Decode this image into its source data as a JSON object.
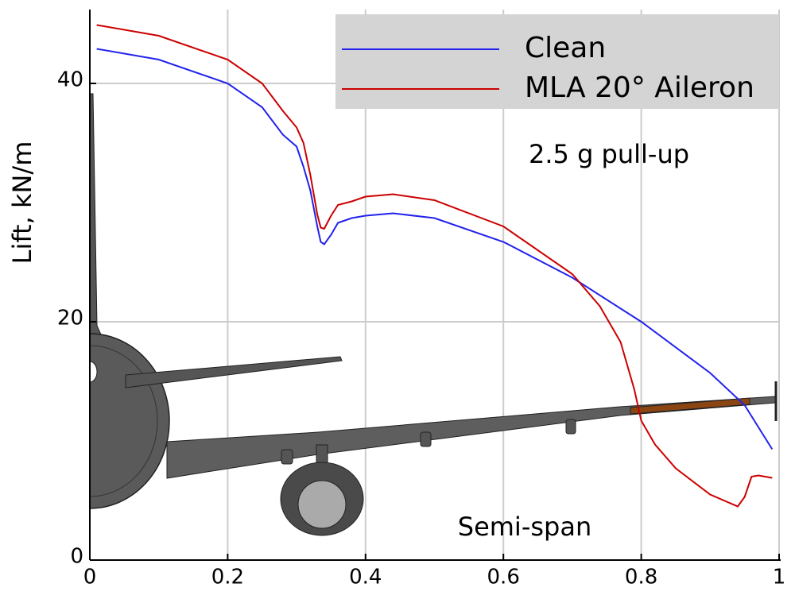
{
  "chart_data": {
    "type": "line",
    "ylabel": "Lift, kN/m",
    "xlabel": "Semi-span",
    "annotation": "2.5 g pull-up",
    "xlim": [
      0,
      1
    ],
    "ylim": [
      0,
      46
    ],
    "xticks": [
      0,
      0.2,
      0.4,
      0.6,
      0.8,
      1
    ],
    "yticks": [
      0,
      20,
      40
    ],
    "grid": true,
    "legend": "upper right",
    "series": [
      {
        "name": "Clean",
        "color": "#2222ee",
        "x": [
          0.01,
          0.1,
          0.2,
          0.25,
          0.28,
          0.3,
          0.31,
          0.32,
          0.33,
          0.335,
          0.34,
          0.35,
          0.36,
          0.38,
          0.4,
          0.44,
          0.5,
          0.6,
          0.7,
          0.8,
          0.9,
          0.95,
          0.99
        ],
        "values": [
          42.9,
          42,
          40,
          38,
          35.7,
          34.7,
          33,
          31,
          28,
          26.7,
          26.5,
          27.3,
          28.3,
          28.7,
          28.9,
          29.1,
          28.7,
          26.7,
          23.7,
          20,
          15.7,
          13,
          9.3
        ]
      },
      {
        "name": "MLA 20° Aileron",
        "color": "#cc0000",
        "x": [
          0.01,
          0.1,
          0.2,
          0.25,
          0.28,
          0.3,
          0.31,
          0.32,
          0.33,
          0.335,
          0.34,
          0.35,
          0.36,
          0.38,
          0.4,
          0.44,
          0.5,
          0.6,
          0.7,
          0.74,
          0.77,
          0.79,
          0.8,
          0.82,
          0.85,
          0.9,
          0.94,
          0.95,
          0.96,
          0.97,
          0.99
        ],
        "values": [
          44.9,
          44,
          42,
          40,
          37.7,
          36.3,
          35,
          32.3,
          29,
          27.9,
          27.8,
          28.9,
          29.8,
          30.1,
          30.5,
          30.7,
          30.2,
          28,
          24,
          21.3,
          18.3,
          14.3,
          11.7,
          9.7,
          7.7,
          5.5,
          4.5,
          5.3,
          7,
          7.1,
          6.9
        ]
      }
    ]
  }
}
